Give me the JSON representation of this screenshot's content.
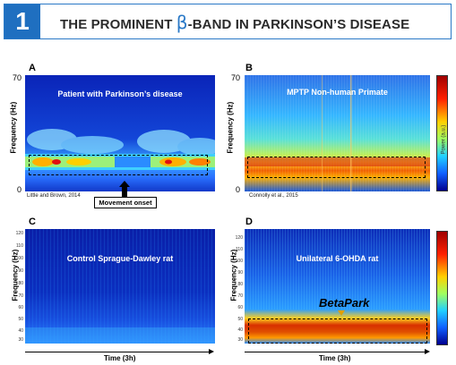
{
  "header": {
    "number": "1",
    "title_pre": "THE PROMINENT ",
    "beta": "β",
    "title_post": "-BAND IN PARKINSON’S DISEASE"
  },
  "panels": {
    "A": {
      "letter": "A",
      "title": "Patient with Parkinson’s disease",
      "ylabel": "Frequency (Hz)",
      "ytick_top": "70",
      "ytick_bottom": "0",
      "citation": "Little and Brown, 2014",
      "onset_label": "Movement onset"
    },
    "B": {
      "letter": "B",
      "title": "MPTP Non-human Primate",
      "ylabel": "Frequency (Hz)",
      "ytick_top": "70",
      "ytick_bottom": "0",
      "citation": "Connolly et al., 2015",
      "colorbar_label": "Power (a.u.)"
    },
    "C": {
      "letter": "C",
      "title": "Control Sprague-Dawley rat",
      "ylabel": "Frequency (Hz)",
      "yticks": [
        "120",
        "110",
        "100",
        "90",
        "80",
        "70",
        "60",
        "50",
        "40",
        "30"
      ],
      "xlabel": "Time (3h)"
    },
    "D": {
      "letter": "D",
      "title": "Unilateral 6-OHDA rat",
      "ylabel": "Frequency (Hz)",
      "yticks": [
        "120",
        "110",
        "100",
        "90",
        "80",
        "70",
        "60",
        "50",
        "40",
        "30"
      ],
      "xlabel": "Time (3h)",
      "annotation": "BetaPark"
    }
  },
  "colors": {
    "header_blue": "#1f6fc0",
    "low_power": "#0a2fb0",
    "high_power": "#c8001a",
    "annotation_arrow": "#e0a000"
  }
}
